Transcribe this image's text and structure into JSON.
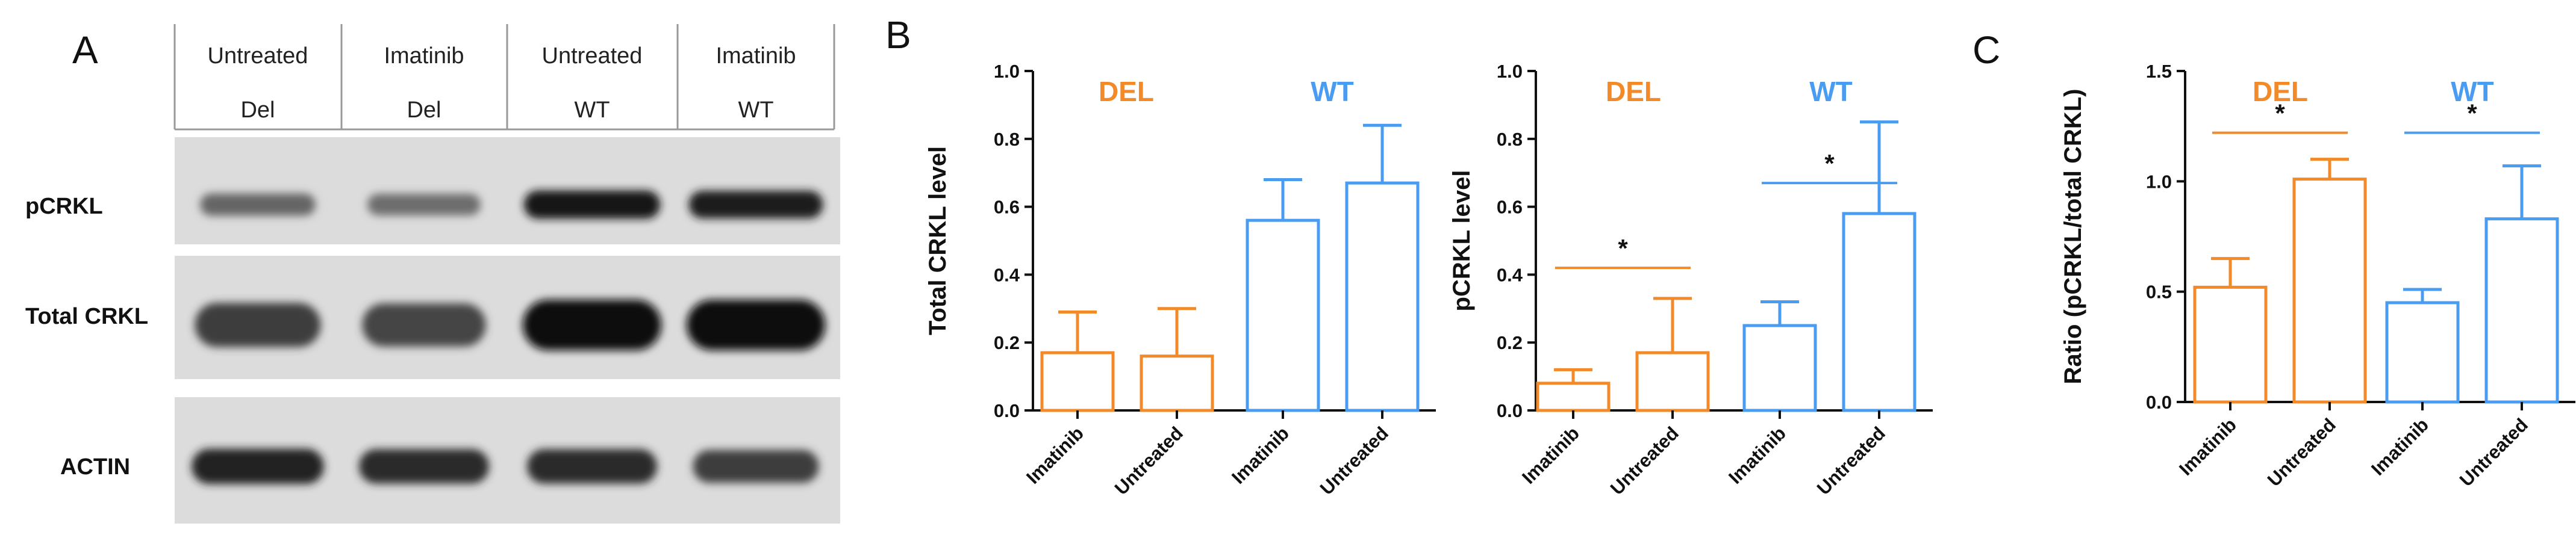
{
  "colors": {
    "del": "#f28a2a",
    "wt": "#4a9cf0",
    "axis": "#111111",
    "blot_bg": "#dcdcdc"
  },
  "panel_a": {
    "letter": "A",
    "lanes": [
      {
        "treatment": "Untreated",
        "genotype": "Del"
      },
      {
        "treatment": "Imatinib",
        "genotype": "Del"
      },
      {
        "treatment": "Untreated",
        "genotype": "WT"
      },
      {
        "treatment": "Imatinib",
        "genotype": "WT"
      }
    ],
    "blots": [
      {
        "label": "pCRKL",
        "intensity": [
          0.45,
          0.4,
          0.95,
          0.9
        ]
      },
      {
        "label": "Total CRKL",
        "intensity": [
          0.7,
          0.65,
          1.0,
          1.0
        ]
      },
      {
        "label": "ACTIN",
        "intensity": [
          0.85,
          0.8,
          0.8,
          0.7
        ]
      }
    ]
  },
  "panel_b_letter": "B",
  "panel_c_letter": "C",
  "chart_data": [
    {
      "type": "bar",
      "title": "",
      "ylabel": "Total CRKL level",
      "xlabel": "",
      "ylim": [
        0,
        1.0
      ],
      "yticks": [
        "0.0",
        "0.2",
        "0.4",
        "0.6",
        "0.8",
        "1.0"
      ],
      "categories": [
        "Imatinib",
        "Untreated",
        "Imatinib",
        "Untreated"
      ],
      "groups": [
        {
          "name": "DEL",
          "color": "#f28a2a",
          "bar_indices": [
            0,
            1
          ]
        },
        {
          "name": "WT",
          "color": "#4a9cf0",
          "bar_indices": [
            2,
            3
          ]
        }
      ],
      "values": [
        0.17,
        0.16,
        0.56,
        0.67
      ],
      "errors": [
        0.12,
        0.14,
        0.12,
        0.17
      ],
      "significance": []
    },
    {
      "type": "bar",
      "title": "",
      "ylabel": "pCRKL level",
      "xlabel": "",
      "ylim": [
        0,
        1.0
      ],
      "yticks": [
        "0.0",
        "0.2",
        "0.4",
        "0.6",
        "0.8",
        "1.0"
      ],
      "categories": [
        "Imatinib",
        "Untreated",
        "Imatinib",
        "Untreated"
      ],
      "groups": [
        {
          "name": "DEL",
          "color": "#f28a2a",
          "bar_indices": [
            0,
            1
          ]
        },
        {
          "name": "WT",
          "color": "#4a9cf0",
          "bar_indices": [
            2,
            3
          ]
        }
      ],
      "values": [
        0.08,
        0.17,
        0.25,
        0.58
      ],
      "errors": [
        0.04,
        0.16,
        0.07,
        0.27
      ],
      "significance": [
        {
          "label": "*",
          "from": 0,
          "to": 1,
          "y": 0.42,
          "group": 0
        },
        {
          "label": "*",
          "from": 2,
          "to": 3,
          "y": 0.67,
          "group": 1
        }
      ]
    },
    {
      "type": "bar",
      "title": "",
      "ylabel": "Ratio (pCRKL/total CRKL)",
      "xlabel": "",
      "ylim": [
        0,
        1.5
      ],
      "yticks": [
        "0.0",
        "0.5",
        "1.0",
        "1.5"
      ],
      "categories": [
        "Imatinib",
        "Untreated",
        "Imatinib",
        "Untreated"
      ],
      "groups": [
        {
          "name": "DEL",
          "color": "#f28a2a",
          "bar_indices": [
            0,
            1
          ]
        },
        {
          "name": "WT",
          "color": "#4a9cf0",
          "bar_indices": [
            2,
            3
          ]
        }
      ],
      "values": [
        0.52,
        1.01,
        0.45,
        0.83
      ],
      "errors": [
        0.13,
        0.09,
        0.06,
        0.24
      ],
      "significance": [
        {
          "label": "*",
          "from": 0,
          "to": 1,
          "y": 1.22,
          "group": 0
        },
        {
          "label": "*",
          "from": 2,
          "to": 3,
          "y": 1.22,
          "group": 1
        }
      ]
    }
  ]
}
